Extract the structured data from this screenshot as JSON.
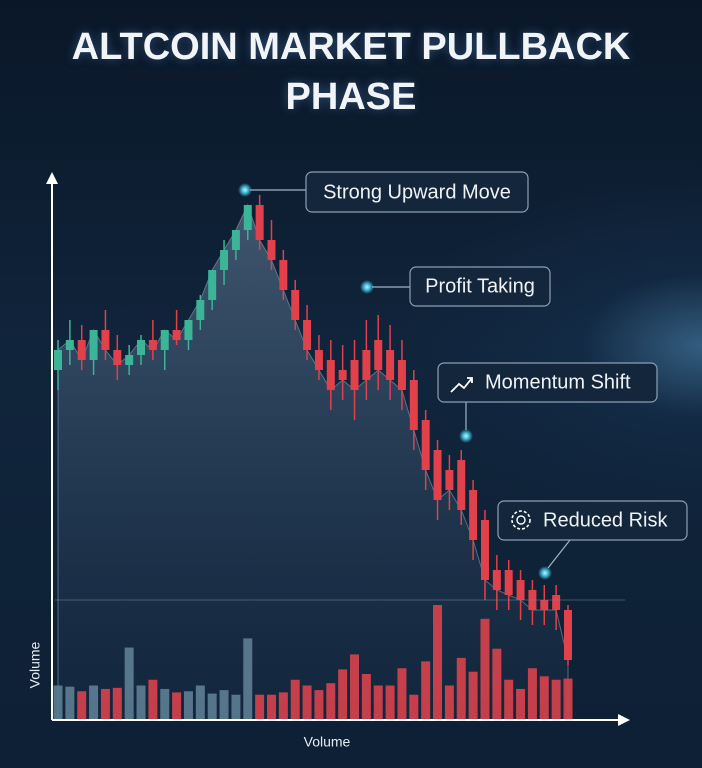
{
  "chart_data": {
    "type": "candlestick",
    "title": "ALTCOIN MARKET PULLBACK PHASE",
    "y_label": "Volume",
    "x_label": "Volume",
    "annotations": [
      "Strong Upward Move",
      "Profit Taking",
      "Momentum Shift",
      "Reduced Risk"
    ],
    "up_color": "#3cb497",
    "down_color": "#e0414b",
    "volume_up_color": "#5d7e94",
    "volume_down_color": "#d9434c",
    "ylim": [
      0,
      100
    ],
    "volume_ylim": [
      0,
      100
    ],
    "open": [
      64,
      68,
      70,
      66,
      72,
      68,
      65,
      67,
      70,
      68,
      72,
      70,
      74,
      78,
      84,
      88,
      92,
      97,
      90,
      86,
      80,
      74,
      68,
      66,
      64,
      66,
      68,
      70,
      68,
      66,
      62,
      54,
      48,
      44,
      46,
      40,
      34,
      24,
      24,
      22,
      20,
      18,
      19,
      16
    ],
    "high": [
      70,
      74,
      73,
      72,
      76,
      71,
      69,
      71,
      74,
      71,
      76,
      74,
      79,
      84,
      90,
      92,
      97,
      99,
      94,
      88,
      82,
      77,
      71,
      70,
      69,
      70,
      74,
      75,
      73,
      70,
      64,
      56,
      50,
      47,
      48,
      42,
      36,
      27,
      26,
      24,
      22,
      21,
      21,
      17
    ],
    "low": [
      60,
      65,
      64,
      63,
      66,
      62,
      63,
      65,
      66,
      64,
      69,
      68,
      72,
      76,
      81,
      86,
      90,
      88,
      84,
      78,
      72,
      66,
      62,
      56,
      58,
      54,
      58,
      60,
      58,
      56,
      48,
      40,
      34,
      36,
      33,
      26,
      18,
      16,
      16,
      14,
      13,
      13,
      12,
      5
    ],
    "close": [
      68,
      70,
      66,
      72,
      68,
      65,
      67,
      70,
      68,
      72,
      70,
      74,
      78,
      84,
      88,
      92,
      97,
      90,
      86,
      80,
      74,
      68,
      64,
      60,
      62,
      60,
      62,
      64,
      62,
      60,
      52,
      44,
      38,
      40,
      36,
      30,
      22,
      20,
      19,
      18,
      16,
      16,
      16,
      6
    ],
    "volume": [
      30,
      29,
      25,
      30,
      27,
      28,
      63,
      30,
      35,
      27,
      24,
      25,
      30,
      23,
      26,
      22,
      71,
      22,
      22,
      24,
      35,
      30,
      26,
      32,
      44,
      57,
      40,
      30,
      30,
      45,
      22,
      51,
      100,
      30,
      54,
      42,
      88,
      62,
      35,
      27,
      45,
      38,
      35,
      36
    ]
  }
}
